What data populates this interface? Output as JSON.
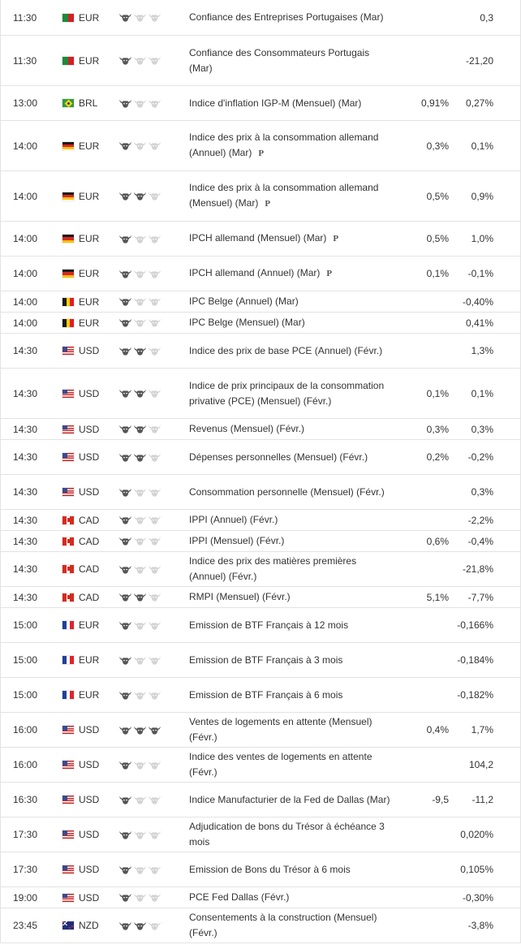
{
  "rows": [
    {
      "time": "11:30",
      "flag": "pt",
      "currency": "EUR",
      "importance": 1,
      "event": "Confiance des Entreprises Portugaises (Mar)",
      "preliminary": false,
      "forecast": "",
      "previous": "0,3",
      "height": 2
    },
    {
      "time": "11:30",
      "flag": "pt",
      "currency": "EUR",
      "importance": 1,
      "event": "Confiance des Consommateurs Portugais (Mar)",
      "preliminary": false,
      "forecast": "",
      "previous": "-21,20",
      "height": 3
    },
    {
      "time": "13:00",
      "flag": "br",
      "currency": "BRL",
      "importance": 1,
      "event": "Indice d'inflation IGP-M (Mensuel) (Mar)",
      "preliminary": false,
      "forecast": "0,91%",
      "previous": "0,27%",
      "height": 2
    },
    {
      "time": "14:00",
      "flag": "de",
      "currency": "EUR",
      "importance": 1,
      "event": "Indice des prix à la consommation allemand (Annuel) (Mar)",
      "preliminary": true,
      "forecast": "0,3%",
      "previous": "0,1%",
      "height": 3
    },
    {
      "time": "14:00",
      "flag": "de",
      "currency": "EUR",
      "importance": 2,
      "event": "Indice des prix à la consommation allemand (Mensuel) (Mar)",
      "preliminary": true,
      "forecast": "0,5%",
      "previous": "0,9%",
      "height": 3
    },
    {
      "time": "14:00",
      "flag": "de",
      "currency": "EUR",
      "importance": 1,
      "event": "IPCH allemand (Mensuel) (Mar)",
      "preliminary": true,
      "forecast": "0,5%",
      "previous": "1,0%",
      "height": 2
    },
    {
      "time": "14:00",
      "flag": "de",
      "currency": "EUR",
      "importance": 1,
      "event": "IPCH allemand (Annuel) (Mar)",
      "preliminary": true,
      "forecast": "0,1%",
      "previous": "-0,1%",
      "height": 2
    },
    {
      "time": "14:00",
      "flag": "be",
      "currency": "EUR",
      "importance": 1,
      "event": "IPC Belge (Annuel) (Mar)",
      "preliminary": false,
      "forecast": "",
      "previous": "-0,40%",
      "height": 1
    },
    {
      "time": "14:00",
      "flag": "be",
      "currency": "EUR",
      "importance": 1,
      "event": "IPC Belge (Mensuel) (Mar)",
      "preliminary": false,
      "forecast": "",
      "previous": "0,41%",
      "height": 1
    },
    {
      "time": "14:30",
      "flag": "us",
      "currency": "USD",
      "importance": 2,
      "event": "Indice des prix de base PCE (Annuel) (Févr.)",
      "preliminary": false,
      "forecast": "",
      "previous": "1,3%",
      "height": 2
    },
    {
      "time": "14:30",
      "flag": "us",
      "currency": "USD",
      "importance": 2,
      "event": "Indice de prix principaux de la consommation privative (PCE) (Mensuel) (Févr.)",
      "preliminary": false,
      "forecast": "0,1%",
      "previous": "0,1%",
      "height": 3
    },
    {
      "time": "14:30",
      "flag": "us",
      "currency": "USD",
      "importance": 2,
      "event": "Revenus (Mensuel) (Févr.)",
      "preliminary": false,
      "forecast": "0,3%",
      "previous": "0,3%",
      "height": 1
    },
    {
      "time": "14:30",
      "flag": "us",
      "currency": "USD",
      "importance": 2,
      "event": "Dépenses personnelles (Mensuel) (Févr.)",
      "preliminary": false,
      "forecast": "0,2%",
      "previous": "-0,2%",
      "height": 2
    },
    {
      "time": "14:30",
      "flag": "us",
      "currency": "USD",
      "importance": 1,
      "event": "Consommation personnelle (Mensuel) (Févr.)",
      "preliminary": false,
      "forecast": "",
      "previous": "0,3%",
      "height": 2
    },
    {
      "time": "14:30",
      "flag": "ca",
      "currency": "CAD",
      "importance": 1,
      "event": "IPPI (Annuel) (Févr.)",
      "preliminary": false,
      "forecast": "",
      "previous": "-2,2%",
      "height": 1
    },
    {
      "time": "14:30",
      "flag": "ca",
      "currency": "CAD",
      "importance": 1,
      "event": "IPPI (Mensuel) (Févr.)",
      "preliminary": false,
      "forecast": "0,6%",
      "previous": "-0,4%",
      "height": 1
    },
    {
      "time": "14:30",
      "flag": "ca",
      "currency": "CAD",
      "importance": 1,
      "event": "Indice des prix des matières premières (Annuel) (Févr.)",
      "preliminary": false,
      "forecast": "",
      "previous": "-21,8%",
      "height": 2
    },
    {
      "time": "14:30",
      "flag": "ca",
      "currency": "CAD",
      "importance": 2,
      "event": "RMPI (Mensuel) (Févr.)",
      "preliminary": false,
      "forecast": "5,1%",
      "previous": "-7,7%",
      "height": 1
    },
    {
      "time": "15:00",
      "flag": "fr",
      "currency": "EUR",
      "importance": 1,
      "event": "Emission de BTF Français à 12 mois",
      "preliminary": false,
      "forecast": "",
      "previous": "-0,166%",
      "height": 2
    },
    {
      "time": "15:00",
      "flag": "fr",
      "currency": "EUR",
      "importance": 1,
      "event": "Emission de BTF Français à 3 mois",
      "preliminary": false,
      "forecast": "",
      "previous": "-0,184%",
      "height": 2
    },
    {
      "time": "15:00",
      "flag": "fr",
      "currency": "EUR",
      "importance": 1,
      "event": "Emission de BTF Français à 6 mois",
      "preliminary": false,
      "forecast": "",
      "previous": "-0,182%",
      "height": 2
    },
    {
      "time": "16:00",
      "flag": "us",
      "currency": "USD",
      "importance": 3,
      "event": "Ventes de logements en attente (Mensuel) (Févr.)",
      "preliminary": false,
      "forecast": "0,4%",
      "previous": "1,7%",
      "height": 2
    },
    {
      "time": "16:00",
      "flag": "us",
      "currency": "USD",
      "importance": 1,
      "event": "Indice des ventes de logements en attente (Févr.)",
      "preliminary": false,
      "forecast": "",
      "previous": "104,2",
      "height": 2
    },
    {
      "time": "16:30",
      "flag": "us",
      "currency": "USD",
      "importance": 1,
      "event": "Indice Manufacturier de la Fed de Dallas (Mar)",
      "preliminary": false,
      "forecast": "-9,5",
      "previous": "-11,2",
      "height": 2
    },
    {
      "time": "17:30",
      "flag": "us",
      "currency": "USD",
      "importance": 1,
      "event": "Adjudication de bons du Trésor à échéance 3 mois",
      "preliminary": false,
      "forecast": "",
      "previous": "0,020%",
      "height": 2
    },
    {
      "time": "17:30",
      "flag": "us",
      "currency": "USD",
      "importance": 1,
      "event": "Emission de Bons du Trésor à 6 mois",
      "preliminary": false,
      "forecast": "",
      "previous": "0,105%",
      "height": 2
    },
    {
      "time": "19:00",
      "flag": "us",
      "currency": "USD",
      "importance": 1,
      "event": "PCE Fed Dallas (Févr.)",
      "preliminary": false,
      "forecast": "",
      "previous": "-0,30%",
      "height": 1
    },
    {
      "time": "23:45",
      "flag": "nz",
      "currency": "NZD",
      "importance": 2,
      "event": "Consentements à la construction (Mensuel) (Févr.)",
      "preliminary": false,
      "forecast": "",
      "previous": "-3,8%",
      "height": 2
    }
  ],
  "preliminary_mark": "P",
  "colors": {
    "bull_active": "#555555",
    "bull_inactive": "#d3d3d3",
    "border": "#e3e3e3",
    "text": "#333333"
  },
  "icons": {
    "importance": "bull-icon",
    "preliminary": "preliminary-icon"
  }
}
